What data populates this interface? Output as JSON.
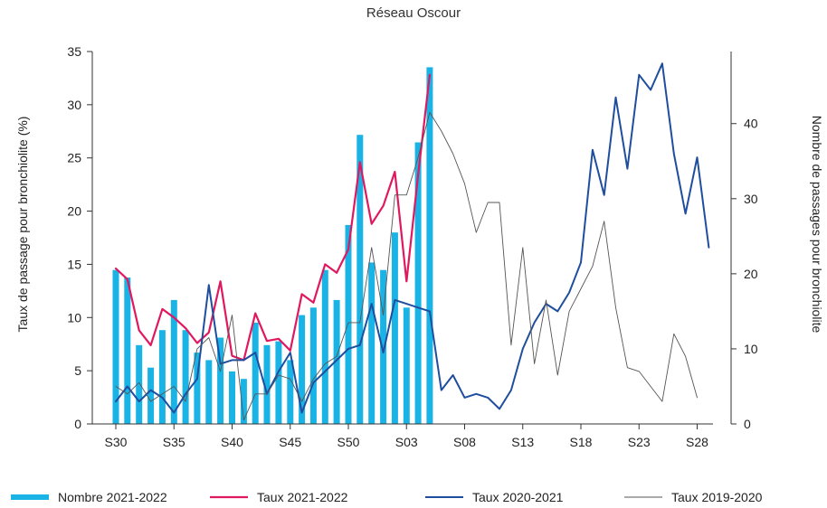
{
  "chart_data": {
    "type": "bar",
    "title": "Réseau Oscour",
    "ylabel_left": "Taux de passage pour bronchiolite (%)",
    "ylabel_right": "Nombre de passages pour bronchiolite",
    "ylim_left": [
      0,
      35
    ],
    "yticks_left": [
      0,
      5,
      10,
      15,
      20,
      25,
      30,
      35
    ],
    "ylim_right": [
      0,
      49.6
    ],
    "yticks_right": [
      0,
      10,
      20,
      30,
      40
    ],
    "x_tick_labels": [
      {
        "index": 0,
        "label": "S30"
      },
      {
        "index": 5,
        "label": "S35"
      },
      {
        "index": 10,
        "label": "S40"
      },
      {
        "index": 15,
        "label": "S45"
      },
      {
        "index": 20,
        "label": "S50"
      },
      {
        "index": 25,
        "label": "S03"
      },
      {
        "index": 30,
        "label": "S08"
      },
      {
        "index": 35,
        "label": "S13"
      },
      {
        "index": 40,
        "label": "S18"
      },
      {
        "index": 45,
        "label": "S23"
      },
      {
        "index": 50,
        "label": "S28"
      }
    ],
    "n_points": 52,
    "series": [
      {
        "name": "Nombre 2021-2022",
        "kind": "bar",
        "axis": "right",
        "color": "#1ab3e6",
        "values": [
          20.5,
          19.5,
          10.5,
          7.5,
          12.5,
          16.5,
          12.5,
          9.5,
          8.5,
          11.5,
          7,
          6,
          13.5,
          10.5,
          11,
          8.5,
          14.5,
          15.5,
          20.5,
          16.5,
          26.5,
          38.5,
          21.5,
          20.5,
          25.5,
          15.5,
          37.5,
          47.5
        ]
      },
      {
        "name": "Taux 2021-2022",
        "kind": "line",
        "axis": "left",
        "color": "#e0185f",
        "width": 2.2,
        "values": [
          14.6,
          13.6,
          8.8,
          7.4,
          10.8,
          10,
          9,
          7.6,
          8.6,
          13.4,
          6.4,
          6,
          10.4,
          7.8,
          8,
          6.9,
          12.2,
          11.4,
          15,
          14.2,
          16.4,
          24.6,
          18.8,
          20.5,
          23.7,
          13.4,
          23.4,
          32.8
        ]
      },
      {
        "name": "Taux 2020-2021",
        "kind": "line",
        "axis": "right",
        "color": "#1f4e9e",
        "width": 2,
        "values": [
          3,
          5,
          3,
          4.5,
          3.5,
          1.5,
          4,
          6,
          18.5,
          8,
          8.5,
          8.5,
          9.5,
          4,
          7,
          9.5,
          1.5,
          5.5,
          7,
          8.5,
          10,
          10.5,
          16,
          9.5,
          16.5,
          16,
          15.5,
          15,
          4.5,
          6.5,
          3.5,
          4,
          3.5,
          2,
          4.5,
          10,
          13.5,
          16,
          15,
          17.5,
          21.5,
          36.5,
          30.5,
          43.5,
          34,
          46.5,
          44.5,
          48,
          36,
          28,
          35.5,
          23.5
        ]
      },
      {
        "name": "Taux 2019-2020",
        "kind": "line",
        "axis": "right",
        "color": "#555555",
        "width": 0.9,
        "values": [
          5,
          4,
          5.5,
          3,
          4,
          5,
          3,
          10,
          11.5,
          7,
          14.5,
          0.5,
          4,
          4,
          6.5,
          6,
          3,
          6,
          8,
          9,
          13.5,
          13.5,
          23.5,
          14.5,
          30.5,
          30.5,
          35.5,
          41.5,
          39,
          36,
          32,
          25.5,
          29.5,
          29.5,
          10.5,
          23.5,
          8,
          16.5,
          6.5,
          15,
          18,
          21,
          27,
          15.5,
          7.5,
          7,
          5,
          3,
          12,
          9,
          3.5
        ]
      }
    ],
    "legend": [
      {
        "label": "Nombre 2021-2022",
        "color": "#1ab3e6",
        "kind": "bar"
      },
      {
        "label": "Taux 2021-2022",
        "color": "#e0185f",
        "kind": "line"
      },
      {
        "label": "Taux 2020-2021",
        "color": "#1f4e9e",
        "kind": "line"
      },
      {
        "label": "Taux 2019-2020",
        "color": "#555555",
        "kind": "line"
      }
    ],
    "legend_position": "bottom",
    "grid": false
  }
}
